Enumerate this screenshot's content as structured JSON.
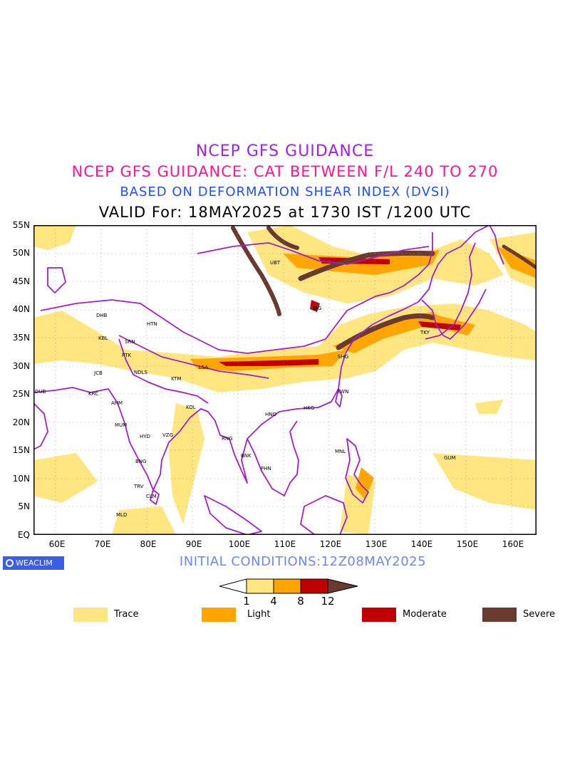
{
  "titles": {
    "line1": "NCEP GFS GUIDANCE",
    "line2": "NCEP GFS GUIDANCE: CAT BETWEEN F/L 240 TO 270",
    "line3": "BASED ON DEFORMATION SHEAR INDEX (DVSI)",
    "line4": "VALID For: 18MAY2025 at 1730 IST /1200 UTC"
  },
  "axes": {
    "lat_labels": [
      "55N",
      "50N",
      "45N",
      "40N",
      "35N",
      "30N",
      "25N",
      "20N",
      "15N",
      "10N",
      "5N",
      "EQ"
    ],
    "lon_labels": [
      "60E",
      "70E",
      "80E",
      "90E",
      "100E",
      "110E",
      "120E",
      "130E",
      "140E",
      "150E",
      "160E"
    ],
    "lon_range": [
      55,
      165
    ],
    "lat_range": [
      0,
      55
    ],
    "grid": true
  },
  "cities": [
    "DHB",
    "HTN",
    "KBL",
    "SRN",
    "PTK",
    "JCB",
    "NDLS",
    "KTM",
    "LSA",
    "DUB",
    "KRC",
    "AHM",
    "KOL",
    "MUM",
    "HYD",
    "VZG",
    "RNG",
    "HNO",
    "HKG",
    "BNK",
    "PHN",
    "UBT",
    "BJG",
    "SHG",
    "TKY",
    "TWN",
    "MNL",
    "GUM",
    "BNG",
    "TRV",
    "CLM",
    "MLD"
  ],
  "logo": {
    "text": "WEACLIM"
  },
  "initial_conditions": "INITIAL CONDITIONS:12Z08MAY2025",
  "colorbar": {
    "ticks": [
      "1",
      "4",
      "8",
      "12"
    ],
    "colors": [
      "#ffe680",
      "#ffa500",
      "#c00000",
      "#6b3a2e"
    ]
  },
  "legend": [
    {
      "label": "Trace",
      "color": "#ffe680"
    },
    {
      "label": "Light",
      "color": "#ffa500"
    },
    {
      "label": "Moderate",
      "color": "#c00000"
    },
    {
      "label": "Severe",
      "color": "#6b3a2e"
    }
  ]
}
